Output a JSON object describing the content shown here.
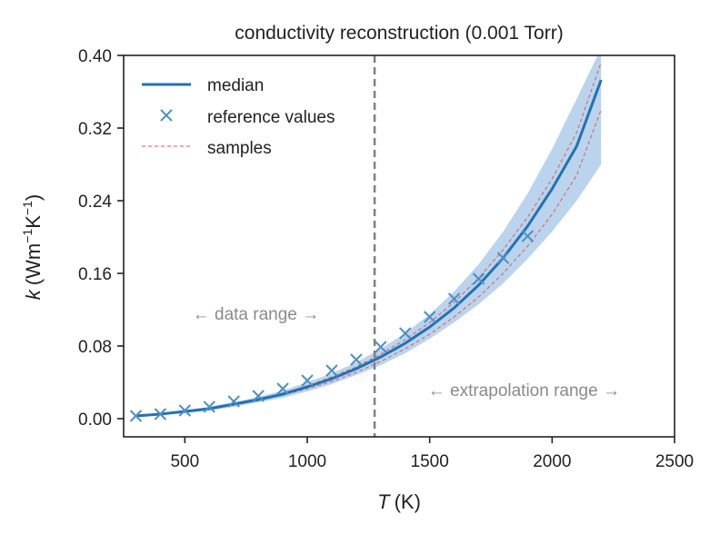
{
  "chart_data": {
    "type": "line",
    "title": "conductivity reconstruction (0.001 Torr)",
    "xlabel": {
      "symbol": "T",
      "unit": "(K)"
    },
    "ylabel": {
      "symbol": "k",
      "unit_pre": "(Wm",
      "sup1": "−1",
      "unit_mid": "K",
      "sup2": "−1",
      "unit_post": ")"
    },
    "xlim": [
      250,
      2500
    ],
    "ylim": [
      -0.02,
      0.4
    ],
    "xticks": [
      500,
      1000,
      1500,
      2000,
      2500
    ],
    "xtick_labels": [
      "500",
      "1000",
      "1500",
      "2000",
      "2500"
    ],
    "yticks": [
      0.0,
      0.08,
      0.16,
      0.24,
      0.32,
      0.4
    ],
    "ytick_labels": [
      "0.00",
      "0.08",
      "0.16",
      "0.24",
      "0.32",
      "0.40"
    ],
    "legend_position": "top-left",
    "legend": [
      {
        "label": "median",
        "kind": "line"
      },
      {
        "label": "reference values",
        "kind": "marker"
      },
      {
        "label": "samples",
        "kind": "dashed"
      }
    ],
    "vline": {
      "x": 1275,
      "style": "dashed",
      "color": "#808080"
    },
    "annotations": [
      {
        "text": "← data range →",
        "x": 790,
        "y": 0.109
      },
      {
        "text": "← extrapolation range →",
        "x": 1885,
        "y": 0.025
      }
    ],
    "colors": {
      "median": "#2271b5",
      "reference": "#4f8fc4",
      "samples": "#e8535b",
      "band": "#b9d4ec",
      "annotation": "#8a8a8a"
    },
    "series": [
      {
        "name": "median",
        "x": [
          300,
          400,
          500,
          600,
          700,
          800,
          900,
          1000,
          1100,
          1200,
          1300,
          1400,
          1500,
          1600,
          1700,
          1800,
          1900,
          2000,
          2100,
          2200
        ],
        "y": [
          0.003,
          0.005,
          0.008,
          0.011,
          0.016,
          0.021,
          0.027,
          0.035,
          0.044,
          0.055,
          0.068,
          0.083,
          0.101,
          0.122,
          0.147,
          0.177,
          0.212,
          0.253,
          0.3,
          0.373
        ]
      },
      {
        "name": "reference values",
        "x": [
          300,
          400,
          500,
          600,
          700,
          800,
          900,
          1000,
          1100,
          1200,
          1300,
          1400,
          1500,
          1600,
          1700,
          1800,
          1900
        ],
        "y": [
          0.003,
          0.005,
          0.009,
          0.013,
          0.019,
          0.025,
          0.033,
          0.042,
          0.053,
          0.065,
          0.079,
          0.094,
          0.112,
          0.132,
          0.154,
          0.177,
          0.201
        ]
      },
      {
        "name": "samples",
        "curves": [
          {
            "x": [
              300,
              400,
              500,
              600,
              700,
              800,
              900,
              1000,
              1100,
              1200,
              1300,
              1400,
              1500,
              1600,
              1700,
              1800,
              1900,
              2000,
              2100,
              2200
            ],
            "y": [
              0.003,
              0.005,
              0.008,
              0.011,
              0.016,
              0.021,
              0.028,
              0.036,
              0.046,
              0.057,
              0.071,
              0.087,
              0.106,
              0.128,
              0.155,
              0.186,
              0.222,
              0.264,
              0.315,
              0.392
            ]
          },
          {
            "x": [
              300,
              400,
              500,
              600,
              700,
              800,
              900,
              1000,
              1100,
              1200,
              1300,
              1400,
              1500,
              1600,
              1700,
              1800,
              1900,
              2000,
              2100,
              2200
            ],
            "y": [
              0.003,
              0.005,
              0.007,
              0.01,
              0.015,
              0.02,
              0.026,
              0.033,
              0.041,
              0.051,
              0.063,
              0.077,
              0.093,
              0.112,
              0.134,
              0.16,
              0.19,
              0.225,
              0.268,
              0.34
            ]
          }
        ]
      },
      {
        "name": "band",
        "x": [
          300,
          400,
          500,
          600,
          700,
          800,
          900,
          1000,
          1100,
          1200,
          1300,
          1400,
          1500,
          1600,
          1700,
          1800,
          1900,
          2000,
          2100,
          2200
        ],
        "upper": [
          0.004,
          0.006,
          0.009,
          0.013,
          0.018,
          0.024,
          0.031,
          0.04,
          0.05,
          0.062,
          0.077,
          0.094,
          0.115,
          0.14,
          0.17,
          0.206,
          0.248,
          0.297,
          0.352,
          0.408
        ],
        "lower": [
          0.002,
          0.004,
          0.006,
          0.009,
          0.013,
          0.018,
          0.023,
          0.03,
          0.038,
          0.048,
          0.059,
          0.072,
          0.088,
          0.106,
          0.126,
          0.149,
          0.176,
          0.206,
          0.24,
          0.28
        ]
      }
    ]
  }
}
